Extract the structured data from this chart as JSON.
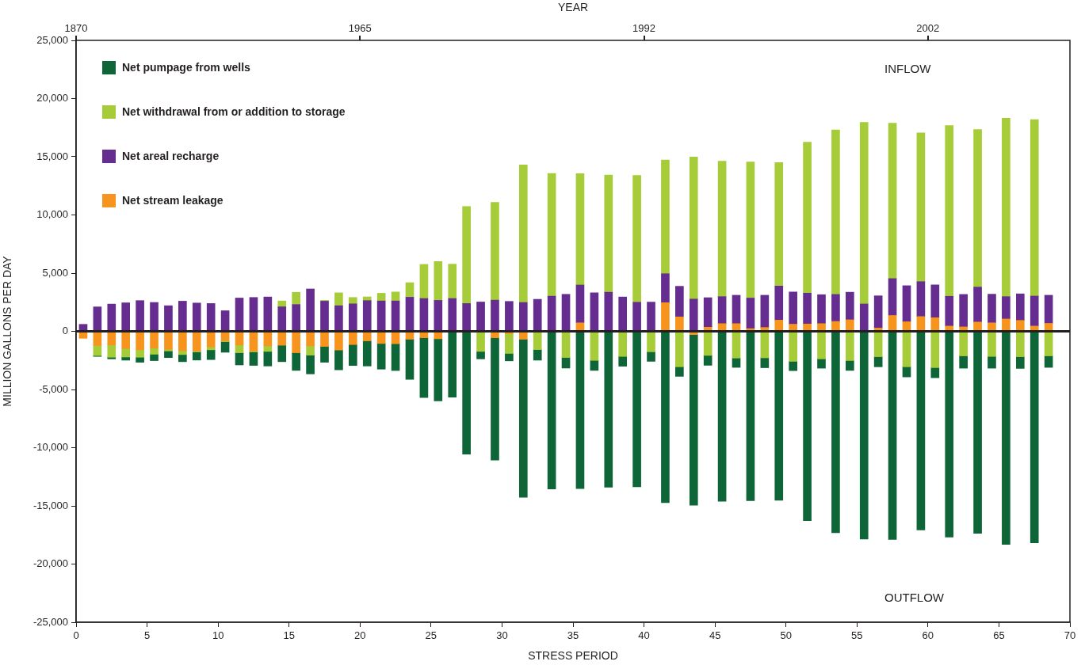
{
  "chart_data": {
    "type": "bar",
    "stacked": true,
    "xlabel": "STRESS PERIOD",
    "ylabel": "MILLION GALLONS PER DAY",
    "x2label": "YEAR",
    "x": [
      0.5,
      1.5,
      2.5,
      3.5,
      4.5,
      5.5,
      6.5,
      7.5,
      8.5,
      9.5,
      10.5,
      11.5,
      12.5,
      13.5,
      14.5,
      15.5,
      16.5,
      17.5,
      18.5,
      19.5,
      20.5,
      21.5,
      22.5,
      23.5,
      24.5,
      25.5,
      26.5,
      27.5,
      28.5,
      29.5,
      30.5,
      31.5,
      32.5,
      33.5,
      34.5,
      35.5,
      36.5,
      37.5,
      38.5,
      39.5,
      40.5,
      41.5,
      42.5,
      43.5,
      44.5,
      45.5,
      46.5,
      47.5,
      48.5,
      49.5,
      50.5,
      51.5,
      52.5,
      53.5,
      54.5,
      55.5,
      56.5,
      57.5,
      58.5,
      59.5,
      60.5,
      61.5,
      62.5,
      63.5,
      64.5,
      65.5,
      66.5,
      67.5,
      68.5
    ],
    "series": [
      {
        "name": "Net stream leakage",
        "color": "#f7941d",
        "values": [
          -600,
          -1230,
          -1180,
          -1480,
          -1590,
          -1450,
          -1550,
          -1660,
          -1700,
          -1340,
          -820,
          -1180,
          -1700,
          -1250,
          -1200,
          -1840,
          -1250,
          -1300,
          -1610,
          -1140,
          -820,
          -1050,
          -1070,
          -680,
          -550,
          -640,
          null,
          null,
          null,
          -550,
          -200,
          -680,
          null,
          null,
          null,
          730,
          null,
          null,
          null,
          null,
          null,
          2460,
          1240,
          -280,
          350,
          660,
          660,
          230,
          330,
          960,
          610,
          630,
          660,
          850,
          990,
          null,
          280,
          1360,
          820,
          1270,
          1170,
          450,
          380,
          800,
          730,
          1060,
          940,
          450,
          680
        ]
      },
      {
        "name": "Net areal recharge",
        "color": "#652d90",
        "values": [
          600,
          2100,
          2340,
          2450,
          2640,
          2480,
          2200,
          2590,
          2430,
          2390,
          1770,
          2860,
          2910,
          2950,
          2110,
          2300,
          3640,
          2590,
          2200,
          2360,
          2640,
          2610,
          2610,
          2930,
          2820,
          2660,
          2820,
          2390,
          2520,
          2680,
          2570,
          2480,
          2750,
          3020,
          3180,
          3250,
          3310,
          3360,
          2950,
          2500,
          2510,
          2490,
          2630,
          2770,
          2540,
          2320,
          2440,
          2630,
          2770,
          2930,
          2770,
          2650,
          2490,
          2320,
          2370,
          2350,
          2770,
          3170,
          3100,
          3000,
          2820,
          2560,
          2790,
          3000,
          2460,
          1920,
          2280,
          2580,
          2420
        ]
      },
      {
        "name": "Net withdrawal from or addition to storage",
        "color": "#a6cd39",
        "values": [
          null,
          -860,
          -1050,
          -730,
          -640,
          -520,
          -140,
          -340,
          -70,
          -250,
          -70,
          -660,
          -70,
          -480,
          500,
          1050,
          -800,
          70,
          1110,
          550,
          320,
          660,
          770,
          1250,
          2930,
          3340,
          2950,
          8340,
          -1730,
          8410,
          -1700,
          11820,
          -1570,
          10550,
          -2250,
          9570,
          -2500,
          10070,
          -2160,
          10890,
          -1760,
          9770,
          -3050,
          12210,
          -2070,
          11640,
          -2300,
          11690,
          -2280,
          10610,
          -2580,
          12980,
          -2370,
          14130,
          -2510,
          15610,
          -2180,
          13360,
          -3050,
          12790,
          -3120,
          14670,
          -2110,
          13540,
          -2160,
          15330,
          -2180,
          15160,
          -2110
        ]
      },
      {
        "name": "Net pumpage from wells",
        "color": "#0e6638",
        "values": [
          null,
          -70,
          -140,
          -270,
          -430,
          -550,
          -570,
          -610,
          -700,
          -840,
          -910,
          -1050,
          -1160,
          -1250,
          -1410,
          -1520,
          -1610,
          -1360,
          -1700,
          -1800,
          -2160,
          -2200,
          -2300,
          -3450,
          -5140,
          -5340,
          -5660,
          -10550,
          -640,
          -10520,
          -640,
          -13590,
          -910,
          -13550,
          -910,
          -13520,
          -860,
          -13400,
          -840,
          -13360,
          -820,
          -14720,
          -820,
          -14670,
          -850,
          -14600,
          -800,
          -14550,
          -850,
          -14510,
          -800,
          -16270,
          -800,
          -17300,
          -850,
          -17860,
          -870,
          -17890,
          -870,
          -17070,
          -870,
          -17680,
          -1060,
          -17350,
          -1010,
          -18310,
          -1010,
          -18170,
          -990
        ]
      }
    ],
    "xlim": [
      0,
      70
    ],
    "xticks": [
      0,
      5,
      10,
      15,
      20,
      25,
      30,
      35,
      40,
      45,
      50,
      55,
      60,
      65,
      70
    ],
    "ylim": [
      -25000,
      25000
    ],
    "yticks": [
      {
        "value": -25000,
        "label": "-25,000"
      },
      {
        "value": -20000,
        "label": "-20,000"
      },
      {
        "value": -15000,
        "label": "-15,000"
      },
      {
        "value": -10000,
        "label": "-10,000"
      },
      {
        "value": -5000,
        "label": "-5,000"
      },
      {
        "value": 0,
        "label": "0"
      },
      {
        "value": 5000,
        "label": "5,000"
      },
      {
        "value": 10000,
        "label": "10,000"
      },
      {
        "value": 15000,
        "label": "15,000"
      },
      {
        "value": 20000,
        "label": "20,000"
      },
      {
        "value": 25000,
        "label": "25,000"
      }
    ],
    "ref_lines": [
      {
        "axis": "y",
        "value": 0,
        "color": "#231f20"
      }
    ],
    "annotations": [
      "INFLOW",
      "OUTFLOW",
      "1870",
      "1965",
      "1992",
      "2002"
    ],
    "grid": false,
    "legend": "top left"
  }
}
